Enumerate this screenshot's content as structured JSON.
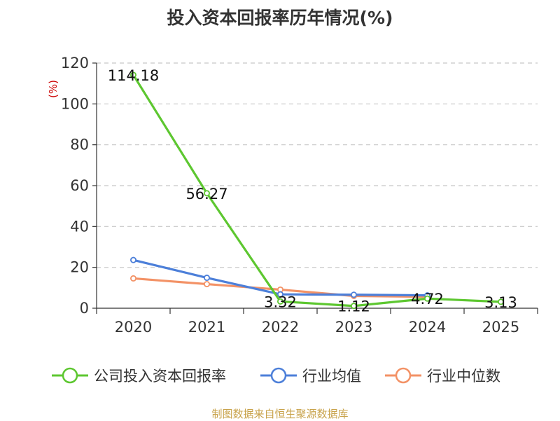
{
  "chart_data": {
    "type": "line",
    "title": "投入资本回报率历年情况(%)",
    "ylabel": "(%)",
    "xlabel": "",
    "categories": [
      "2020",
      "2021",
      "2022",
      "2023",
      "2024",
      "2025"
    ],
    "ylim": [
      0,
      120
    ],
    "yticks": [
      0,
      20,
      40,
      60,
      80,
      100,
      120
    ],
    "grid": true,
    "legend_position": "bottom",
    "series": [
      {
        "name": "公司投入资本回报率",
        "color": "#5dc730",
        "values": [
          114.18,
          56.27,
          3.32,
          1.12,
          4.72,
          3.13
        ],
        "labels": [
          "114.18",
          "56.27",
          "3.32",
          "1.12",
          "4.72",
          "3.13"
        ]
      },
      {
        "name": "行业均值",
        "color": "#4c7fd9",
        "values": [
          23.6,
          14.9,
          6.8,
          6.6,
          6.3,
          null
        ]
      },
      {
        "name": "行业中位数",
        "color": "#f39266",
        "values": [
          14.6,
          11.8,
          9.1,
          6.0,
          5.6,
          null
        ]
      }
    ]
  },
  "footer": {
    "source": "制图数据来自恒生聚源数据库"
  }
}
